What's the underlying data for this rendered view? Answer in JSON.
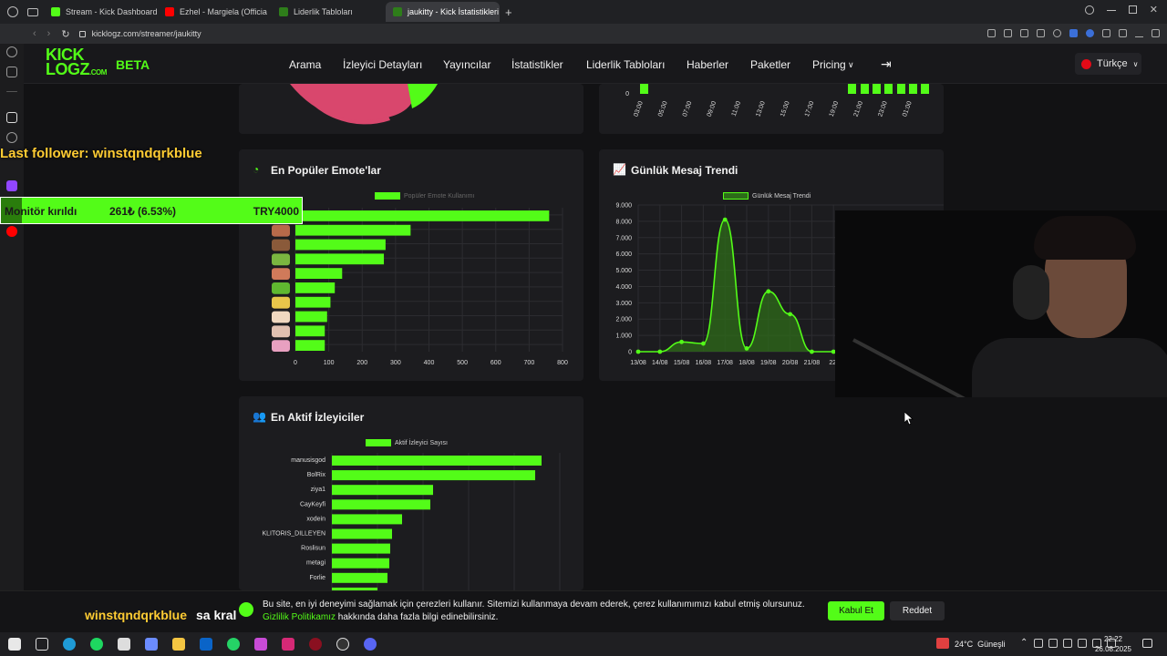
{
  "browser": {
    "tabs": [
      {
        "label": "Stream - Kick Dashboard",
        "color": "#53fc18"
      },
      {
        "label": "Ezhel - Margiela (Officia",
        "color": "#ff0000"
      },
      {
        "label": "Liderlik Tabloları",
        "color": "#53fc18"
      },
      {
        "label": "jaukitty - Kick İstatistikleri",
        "color": "#53fc18"
      }
    ],
    "new_tab_symbol": "+",
    "url": "kicklogz.com/streamer/jaukitty"
  },
  "site": {
    "logo_line1": "KICK",
    "logo_line2": "LOGZ",
    "logo_suffix": ".COM",
    "beta": "BETA",
    "nav": [
      "Arama",
      "İzleyici Detayları",
      "Yayıncılar",
      "İstatistikler",
      "Liderlik Tabloları",
      "Haberler",
      "Paketler",
      "Pricing"
    ],
    "language": "Türkçe",
    "accent": "#53fc18"
  },
  "overlay": {
    "last_follower": "Last follower: winstqndqrkblue",
    "ticker_label": "Monitör kırıldı",
    "ticker_value": "261₺ (6.53%)",
    "ticker_goal": "TRY4000",
    "chat_user": "winstqndqrkblue",
    "chat_text": "sa kral"
  },
  "top_hourly": {
    "y_zero": "0",
    "x_labels": [
      "03:00",
      "05:00",
      "07:00",
      "09:00",
      "11:00",
      "13:00",
      "15:00",
      "17:00",
      "19:00",
      "21:00",
      "23:00",
      "01:00"
    ]
  },
  "emotes_card": {
    "title": "En Popüler Emote'lar",
    "legend": "Popüler Emote Kullanımı"
  },
  "trend_card": {
    "title": "Günlük Mesaj Trendi",
    "legend": "Günlük Mesaj Trendi"
  },
  "viewers_card": {
    "title": "En Aktif İzleyiciler",
    "legend": "Aktif İzleyici Sayısı"
  },
  "chart_data": [
    {
      "type": "bar",
      "title": "En Popüler Emote'lar",
      "legend": "Popüler Emote Kullanımı",
      "orientation": "horizontal",
      "categories": [
        "",
        "",
        "",
        "",
        "",
        "",
        "",
        "",
        "",
        ""
      ],
      "values": [
        760,
        345,
        270,
        265,
        140,
        118,
        105,
        95,
        88,
        88
      ],
      "xlim": [
        0,
        800
      ],
      "x_ticks": [
        "0",
        "100",
        "200",
        "300",
        "400",
        "500",
        "600",
        "700",
        "800"
      ],
      "grid": true
    },
    {
      "type": "area",
      "title": "Günlük Mesaj Trendi",
      "legend": "Günlük Mesaj Trendi",
      "x": [
        "13/08",
        "14/08",
        "15/08",
        "16/08",
        "17/08",
        "18/08",
        "19/08",
        "20/08",
        "21/08",
        "22/"
      ],
      "values": [
        0,
        0,
        600,
        500,
        8100,
        200,
        3700,
        2300,
        0,
        0
      ],
      "ylim": [
        0,
        9000
      ],
      "y_ticks": [
        "0",
        "1.000",
        "2.000",
        "3.000",
        "4.000",
        "5.000",
        "6.000",
        "7.000",
        "8.000",
        "9.000"
      ],
      "grid": true
    },
    {
      "type": "bar",
      "title": "En Aktif İzleyiciler",
      "legend": "Aktif İzleyici Sayısı",
      "orientation": "horizontal",
      "categories": [
        "manusisgod",
        "BolRix",
        "ziya1",
        "CayKeyfi",
        "xodein",
        "KLITORIS_DILLEYEN",
        "Roslisun",
        "metagi",
        "Forlie"
      ],
      "values": [
        230,
        223,
        111,
        108,
        77,
        66,
        64,
        63,
        61
      ],
      "xlim": [
        0,
        250
      ],
      "grid": true
    }
  ],
  "cookie": {
    "text": "Bu site, en iyi deneyimi sağlamak için çerezleri kullanır. Sitemizi kullanmaya devam ederek, çerez kullanımımızı kabul etmiş olursunuz.",
    "policy_link": "Gizlilik Politikamız",
    "policy_rest": "hakkında daha fazla bilgi edinebilirsiniz.",
    "accept": "Kabul Et",
    "reject": "Reddet"
  },
  "taskbar": {
    "weather": "24°C  Güneşli",
    "time": "22:22",
    "date": "26.08.2025"
  }
}
